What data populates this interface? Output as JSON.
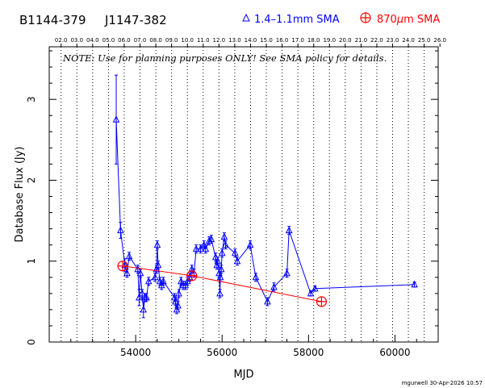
{
  "header": {
    "source_b": "B1144-379",
    "source_j": "J1147-382",
    "legend_blue": "1.4–1.1mm SMA",
    "legend_red_prefix": "870",
    "legend_red_mu": "μ",
    "legend_red_suffix": "m SMA"
  },
  "note": "NOTE: Use for planning purposes ONLY!  See SMA policy for details.",
  "footer": "mgurwell 30-Apr-2026 10:57",
  "colors": {
    "blue": "#0000ff",
    "red": "#ff0000",
    "axis": "#000000"
  },
  "chart_data": {
    "type": "scatter",
    "xlabel": "MJD",
    "ylabel": "Database Flux (Jy)",
    "xlim": [
      52000,
      61000
    ],
    "ylim": [
      0,
      3.65
    ],
    "x_ticks": [
      54000,
      56000,
      58000,
      60000
    ],
    "x_ticks_minor": [
      52000,
      52500,
      53000,
      53500,
      54500,
      55000,
      55500,
      56500,
      57000,
      57500,
      58500,
      59000,
      59500,
      60500,
      61000
    ],
    "y_ticks": [
      0,
      1,
      2,
      3
    ],
    "top_axis_labels": [
      "02.0",
      "03.0",
      "04.0",
      "05.0",
      "06.0",
      "07.0",
      "08.0",
      "09.0",
      "10.0",
      "11.0",
      "12.0",
      "13.0",
      "14.0",
      "15.0",
      "16.0",
      "17.0",
      "18.0",
      "19.0",
      "20.0",
      "21.0",
      "22.0",
      "23.0",
      "24.0",
      "25.0",
      "26.0"
    ],
    "top_axis_mjd": [
      52275,
      52640,
      53005,
      53371,
      53736,
      54101,
      54466,
      54832,
      55197,
      55562,
      55927,
      56293,
      56658,
      57023,
      57388,
      57754,
      58119,
      58484,
      58849,
      59215,
      59580,
      59945,
      60310,
      60676,
      61041
    ],
    "grid": "vertical dotted at year marks",
    "series": [
      {
        "name": "1.4–1.1mm SMA",
        "marker": "triangle",
        "points": [
          {
            "x": 53550,
            "y": 2.75,
            "err": 0.55
          },
          {
            "x": 53650,
            "y": 1.38,
            "err": 0.1
          },
          {
            "x": 53750,
            "y": 0.95,
            "err": 0.08
          },
          {
            "x": 53800,
            "y": 0.85,
            "err": 0.05
          },
          {
            "x": 53850,
            "y": 1.06,
            "err": 0.05
          },
          {
            "x": 54050,
            "y": 0.9,
            "err": 0.05
          },
          {
            "x": 54080,
            "y": 0.55,
            "err": 0.1
          },
          {
            "x": 54110,
            "y": 0.85,
            "err": 0.05
          },
          {
            "x": 54150,
            "y": 0.6,
            "err": 0.05
          },
          {
            "x": 54180,
            "y": 0.4,
            "err": 0.1
          },
          {
            "x": 54220,
            "y": 0.55,
            "err": 0.05
          },
          {
            "x": 54250,
            "y": 0.55,
            "err": 0.05
          },
          {
            "x": 54300,
            "y": 0.75,
            "err": 0.05
          },
          {
            "x": 54450,
            "y": 0.8,
            "err": 0.05
          },
          {
            "x": 54480,
            "y": 0.9,
            "err": 0.05
          },
          {
            "x": 54500,
            "y": 1.2,
            "err": 0.05
          },
          {
            "x": 54520,
            "y": 0.95,
            "err": 0.05
          },
          {
            "x": 54560,
            "y": 0.75,
            "err": 0.05
          },
          {
            "x": 54600,
            "y": 0.7,
            "err": 0.05
          },
          {
            "x": 54640,
            "y": 0.75,
            "err": 0.05
          },
          {
            "x": 54900,
            "y": 0.55,
            "err": 0.05
          },
          {
            "x": 54920,
            "y": 0.5,
            "err": 0.05
          },
          {
            "x": 54950,
            "y": 0.4,
            "err": 0.05
          },
          {
            "x": 54980,
            "y": 0.45,
            "err": 0.05
          },
          {
            "x": 55000,
            "y": 0.6,
            "err": 0.05
          },
          {
            "x": 55050,
            "y": 0.75,
            "err": 0.05
          },
          {
            "x": 55100,
            "y": 0.7,
            "err": 0.05
          },
          {
            "x": 55150,
            "y": 0.7,
            "err": 0.05
          },
          {
            "x": 55200,
            "y": 0.75,
            "err": 0.05
          },
          {
            "x": 55250,
            "y": 0.8,
            "err": 0.05
          },
          {
            "x": 55300,
            "y": 0.9,
            "err": 0.05
          },
          {
            "x": 55350,
            "y": 0.85,
            "err": 0.05
          },
          {
            "x": 55400,
            "y": 1.15,
            "err": 0.05
          },
          {
            "x": 55500,
            "y": 1.15,
            "err": 0.05
          },
          {
            "x": 55580,
            "y": 1.2,
            "err": 0.05
          },
          {
            "x": 55620,
            "y": 1.15,
            "err": 0.05
          },
          {
            "x": 55700,
            "y": 1.25,
            "err": 0.05
          },
          {
            "x": 55750,
            "y": 1.27,
            "err": 0.05
          },
          {
            "x": 55850,
            "y": 1.05,
            "err": 0.05
          },
          {
            "x": 55880,
            "y": 0.95,
            "err": 0.05
          },
          {
            "x": 55900,
            "y": 1.0,
            "err": 0.05
          },
          {
            "x": 55930,
            "y": 0.85,
            "err": 0.05
          },
          {
            "x": 55950,
            "y": 0.6,
            "err": 0.05
          },
          {
            "x": 55960,
            "y": 0.8,
            "err": 0.05
          },
          {
            "x": 55980,
            "y": 0.9,
            "err": 0.05
          },
          {
            "x": 56000,
            "y": 1.1,
            "err": 0.05
          },
          {
            "x": 56050,
            "y": 1.3,
            "err": 0.05
          },
          {
            "x": 56080,
            "y": 1.2,
            "err": 0.05
          },
          {
            "x": 56300,
            "y": 1.1,
            "err": 0.05
          },
          {
            "x": 56350,
            "y": 1.0,
            "err": 0.05
          },
          {
            "x": 56650,
            "y": 1.2,
            "err": 0.05
          },
          {
            "x": 56780,
            "y": 0.8,
            "err": 0.05
          },
          {
            "x": 57050,
            "y": 0.5,
            "err": 0.05
          },
          {
            "x": 57200,
            "y": 0.68,
            "err": 0.05
          },
          {
            "x": 57500,
            "y": 0.85,
            "err": 0.05
          },
          {
            "x": 57550,
            "y": 1.38,
            "err": 0.05
          },
          {
            "x": 58050,
            "y": 0.6,
            "err": 0.03
          },
          {
            "x": 58150,
            "y": 0.66,
            "err": 0.03
          },
          {
            "x": 60450,
            "y": 0.71,
            "err": 0.03
          }
        ]
      },
      {
        "name": "870μm SMA",
        "marker": "circled-plus",
        "points": [
          {
            "x": 53700,
            "y": 0.94
          },
          {
            "x": 55300,
            "y": 0.82
          },
          {
            "x": 58300,
            "y": 0.5
          }
        ]
      }
    ]
  }
}
